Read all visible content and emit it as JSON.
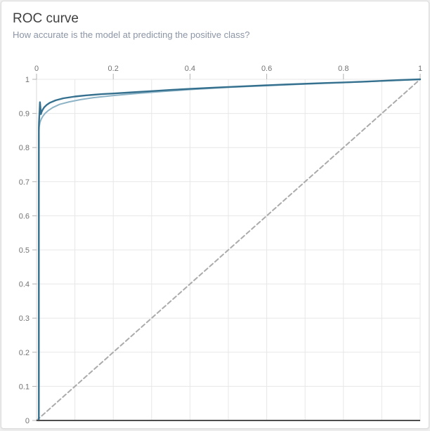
{
  "page": {
    "background": "#efefef"
  },
  "card": {
    "background": "#ffffff",
    "border_color": "#dcdcdc"
  },
  "header": {
    "title": "ROC curve",
    "subtitle": "How accurate is the model at predicting the positive class?"
  },
  "chart_data": {
    "type": "line",
    "title": "ROC curve",
    "subtitle": "How accurate is the model at predicting the positive class?",
    "xlabel": "",
    "ylabel": "",
    "x_axis": {
      "position": "top",
      "range": [
        0,
        1
      ],
      "tick_values": [
        0,
        0.2,
        0.4,
        0.6,
        0.8,
        1
      ],
      "tick_labels": [
        "0",
        "0.2",
        "0.4",
        "0.6",
        "0.8",
        "1"
      ],
      "grid_step": 0.1
    },
    "y_axis": {
      "position": "left",
      "range": [
        0,
        1
      ],
      "tick_values": [
        0,
        0.1,
        0.2,
        0.3,
        0.4,
        0.5,
        0.6,
        0.7,
        0.8,
        0.9,
        1
      ],
      "tick_labels": [
        "0",
        "0.1",
        "0.2",
        "0.3",
        "0.4",
        "0.5",
        "0.6",
        "0.7",
        "0.8",
        "0.9",
        "1"
      ],
      "grid_step": 0.1
    },
    "grid": true,
    "colors": {
      "grid": "#e7e7e7",
      "axis_domain": "#d9d9d9",
      "axis_bottom": "#4d4d4d",
      "tick": "#b3b3b3",
      "label": "#737373",
      "curve": "#35718f",
      "curve_secondary": "#8db3c6",
      "baseline": "#ababab"
    },
    "series": [
      {
        "name": "random-classifier-baseline",
        "style": "dashed",
        "color": "#ababab",
        "width": 2,
        "points": [
          [
            0,
            0
          ],
          [
            1,
            1
          ]
        ]
      },
      {
        "name": "roc-curve-secondary",
        "style": "solid",
        "color": "#8db3c6",
        "width": 2,
        "points": [
          [
            0.006,
            0
          ],
          [
            0.006,
            0.4
          ],
          [
            0.006,
            0.72
          ],
          [
            0.006,
            0.84
          ],
          [
            0.007,
            0.862
          ],
          [
            0.009,
            0.874
          ],
          [
            0.012,
            0.883
          ],
          [
            0.016,
            0.891
          ],
          [
            0.022,
            0.9
          ],
          [
            0.03,
            0.908
          ],
          [
            0.042,
            0.917
          ],
          [
            0.06,
            0.9265
          ],
          [
            0.085,
            0.934
          ],
          [
            0.115,
            0.9405
          ],
          [
            0.15,
            0.9465
          ],
          [
            0.2,
            0.9525
          ],
          [
            0.26,
            0.9585
          ],
          [
            0.33,
            0.9645
          ],
          [
            0.41,
            0.9705
          ],
          [
            0.5,
            0.9765
          ],
          [
            0.6,
            0.9815
          ],
          [
            0.7,
            0.986
          ],
          [
            0.8,
            0.9905
          ],
          [
            0.9,
            0.995
          ],
          [
            1,
            1
          ]
        ]
      },
      {
        "name": "roc-curve",
        "style": "solid",
        "color": "#35718f",
        "width": 2.4,
        "points": [
          [
            0.006,
            0
          ],
          [
            0.006,
            0.3
          ],
          [
            0.006,
            0.6
          ],
          [
            0.006,
            0.8
          ],
          [
            0.006,
            0.858
          ],
          [
            0.0065,
            0.873
          ],
          [
            0.007,
            0.886
          ],
          [
            0.008,
            0.91
          ],
          [
            0.009,
            0.933
          ],
          [
            0.0105,
            0.913
          ],
          [
            0.0115,
            0.898
          ],
          [
            0.013,
            0.904
          ],
          [
            0.016,
            0.911
          ],
          [
            0.02,
            0.918
          ],
          [
            0.027,
            0.9255
          ],
          [
            0.035,
            0.9315
          ],
          [
            0.05,
            0.9385
          ],
          [
            0.07,
            0.9445
          ],
          [
            0.1,
            0.9495
          ],
          [
            0.13,
            0.953
          ],
          [
            0.17,
            0.9565
          ],
          [
            0.2,
            0.9585
          ],
          [
            0.25,
            0.962
          ],
          [
            0.3,
            0.9655
          ],
          [
            0.35,
            0.969
          ],
          [
            0.4,
            0.972
          ],
          [
            0.45,
            0.975
          ],
          [
            0.5,
            0.9775
          ],
          [
            0.55,
            0.98
          ],
          [
            0.6,
            0.9825
          ],
          [
            0.65,
            0.985
          ],
          [
            0.7,
            0.987
          ],
          [
            0.75,
            0.989
          ],
          [
            0.8,
            0.991
          ],
          [
            0.85,
            0.993
          ],
          [
            0.9,
            0.9955
          ],
          [
            0.95,
            0.998
          ],
          [
            1,
            1
          ]
        ]
      }
    ]
  }
}
